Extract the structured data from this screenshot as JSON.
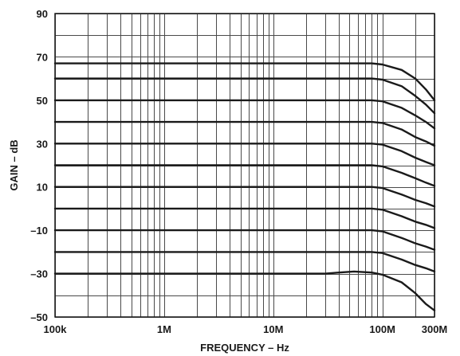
{
  "chart_data": {
    "type": "line",
    "title": "",
    "xlabel": "FREQUENCY – Hz",
    "ylabel": "GAIN – dB",
    "x_scale": "log",
    "xlim": [
      100000,
      300000000
    ],
    "ylim": [
      -50,
      90
    ],
    "grid": true,
    "x_tick_values": [
      100000,
      1000000,
      10000000,
      100000000,
      300000000
    ],
    "x_tick_labels": [
      "100k",
      "1M",
      "10M",
      "100M",
      "300M"
    ],
    "y_tick_values": [
      -50,
      -30,
      -10,
      10,
      30,
      50,
      70,
      90
    ],
    "y_tick_labels": [
      "–50",
      "–30",
      "–10",
      "10",
      "30",
      "50",
      "70",
      "90"
    ],
    "series": [
      {
        "x": [
          100000,
          10000000,
          80000000,
          100000000,
          150000000,
          200000000,
          250000000,
          300000000
        ],
        "y": [
          67,
          67,
          67,
          66.5,
          64,
          60,
          55,
          50
        ]
      },
      {
        "x": [
          100000,
          10000000,
          80000000,
          100000000,
          150000000,
          200000000,
          250000000,
          300000000
        ],
        "y": [
          60,
          60,
          60,
          59.5,
          56.5,
          52,
          48,
          44
        ]
      },
      {
        "x": [
          100000,
          10000000,
          80000000,
          100000000,
          150000000,
          200000000,
          250000000,
          300000000
        ],
        "y": [
          50,
          50,
          50,
          49.5,
          46.5,
          43,
          40,
          37
        ]
      },
      {
        "x": [
          100000,
          10000000,
          80000000,
          100000000,
          150000000,
          200000000,
          250000000,
          300000000
        ],
        "y": [
          40,
          40,
          40,
          39.5,
          36.5,
          33,
          31,
          29
        ]
      },
      {
        "x": [
          100000,
          10000000,
          80000000,
          100000000,
          150000000,
          200000000,
          250000000,
          300000000
        ],
        "y": [
          30,
          30,
          30,
          29.5,
          26.5,
          23.5,
          21.5,
          20
        ]
      },
      {
        "x": [
          100000,
          10000000,
          80000000,
          100000000,
          150000000,
          200000000,
          250000000,
          300000000
        ],
        "y": [
          20,
          20,
          20,
          19.5,
          16.5,
          14,
          12,
          10.5
        ]
      },
      {
        "x": [
          100000,
          10000000,
          80000000,
          100000000,
          150000000,
          200000000,
          250000000,
          300000000
        ],
        "y": [
          10,
          10,
          10,
          9.5,
          6.5,
          4,
          2.5,
          1
        ]
      },
      {
        "x": [
          100000,
          10000000,
          80000000,
          100000000,
          150000000,
          200000000,
          250000000,
          300000000
        ],
        "y": [
          0,
          0,
          0,
          -0.5,
          -3.5,
          -6,
          -7.5,
          -9
        ]
      },
      {
        "x": [
          100000,
          10000000,
          80000000,
          100000000,
          150000000,
          200000000,
          250000000,
          300000000
        ],
        "y": [
          -10,
          -10,
          -10,
          -10.5,
          -13.5,
          -16,
          -17.5,
          -19
        ]
      },
      {
        "x": [
          100000,
          10000000,
          80000000,
          100000000,
          150000000,
          200000000,
          250000000,
          300000000
        ],
        "y": [
          -20,
          -20,
          -20,
          -20.5,
          -23.5,
          -26,
          -27.5,
          -29
        ]
      },
      {
        "x": [
          100000,
          10000000,
          30000000,
          40000000,
          55000000,
          80000000,
          100000000,
          150000000,
          200000000,
          250000000,
          300000000
        ],
        "y": [
          -30,
          -30,
          -30,
          -29.5,
          -29,
          -29.5,
          -30.5,
          -34,
          -39,
          -44,
          -47
        ]
      }
    ]
  }
}
